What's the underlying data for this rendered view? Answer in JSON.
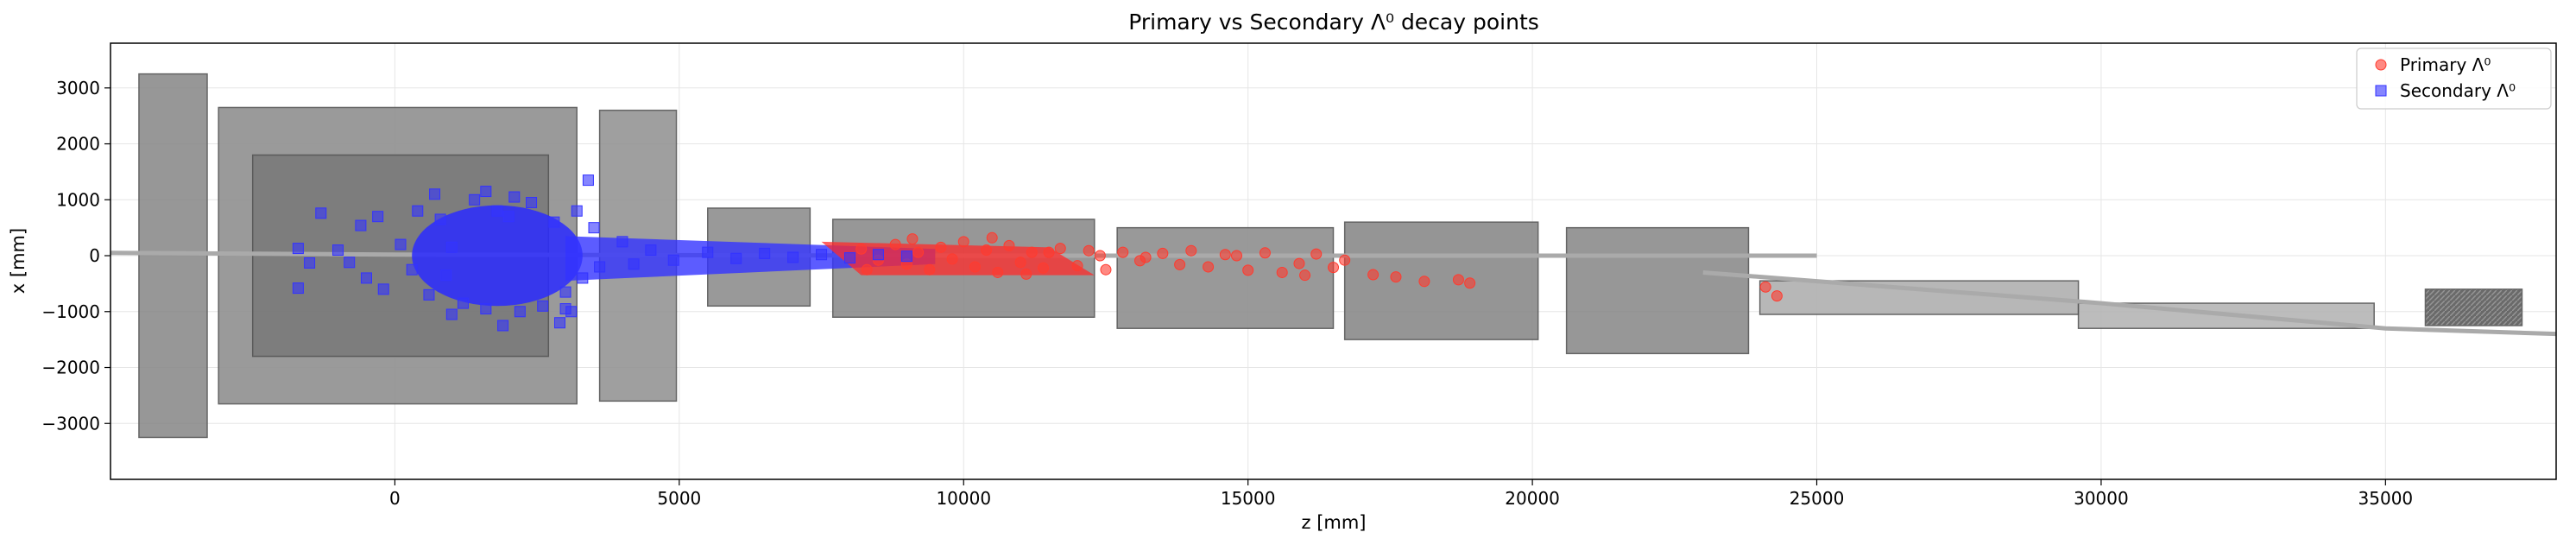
{
  "chart_data": {
    "type": "scatter",
    "title": "Primary vs Secondary Λ⁰ decay points",
    "xlabel": "z [mm]",
    "ylabel": "x [mm]",
    "xlim": [
      -5000,
      38000
    ],
    "ylim": [
      -4000,
      3800
    ],
    "xticks": [
      0,
      5000,
      10000,
      15000,
      20000,
      25000,
      30000,
      35000
    ],
    "yticks": [
      -3000,
      -2000,
      -1000,
      0,
      1000,
      2000,
      3000
    ],
    "grid": true,
    "legend": {
      "position": "upper right",
      "entries": [
        "Primary Λ⁰",
        "Secondary Λ⁰"
      ]
    },
    "colors": {
      "primary": "#ff3b2f",
      "secondary": "#3333ff",
      "detector": "#9a9a9a",
      "detector_dark": "#6e6e6e"
    },
    "series": [
      {
        "name": "Primary Λ⁰",
        "marker": "circle",
        "color": "#ff3b2f",
        "points": [
          [
            8200,
            120
          ],
          [
            8500,
            -80
          ],
          [
            8800,
            200
          ],
          [
            9000,
            -150
          ],
          [
            9200,
            60
          ],
          [
            9400,
            -250
          ],
          [
            9600,
            150
          ],
          [
            9800,
            -60
          ],
          [
            10000,
            250
          ],
          [
            10200,
            -200
          ],
          [
            10400,
            100
          ],
          [
            10600,
            -300
          ],
          [
            10800,
            180
          ],
          [
            11000,
            -120
          ],
          [
            11200,
            60
          ],
          [
            11400,
            -220
          ],
          [
            11700,
            130
          ],
          [
            12000,
            -180
          ],
          [
            12200,
            90
          ],
          [
            12500,
            -250
          ],
          [
            12800,
            60
          ],
          [
            13100,
            -90
          ],
          [
            13500,
            40
          ],
          [
            13800,
            -160
          ],
          [
            14000,
            90
          ],
          [
            14300,
            -200
          ],
          [
            14600,
            20
          ],
          [
            15000,
            -260
          ],
          [
            15300,
            50
          ],
          [
            15600,
            -300
          ],
          [
            15900,
            -140
          ],
          [
            16200,
            30
          ],
          [
            16500,
            -210
          ],
          [
            16700,
            -80
          ],
          [
            17200,
            -340
          ],
          [
            17600,
            -380
          ],
          [
            18100,
            -460
          ],
          [
            18700,
            -430
          ],
          [
            18900,
            -490
          ],
          [
            24100,
            -560
          ],
          [
            24300,
            -720
          ],
          [
            11500,
            60
          ],
          [
            12400,
            0
          ],
          [
            13200,
            -30
          ],
          [
            14800,
            0
          ],
          [
            16000,
            -350
          ],
          [
            8300,
            -250
          ],
          [
            9100,
            300
          ],
          [
            10500,
            320
          ],
          [
            11100,
            -330
          ]
        ]
      },
      {
        "name": "Secondary Λ⁰",
        "marker": "square",
        "color": "#3333ff",
        "points": [
          [
            -1700,
            130
          ],
          [
            -1500,
            -130
          ],
          [
            -1300,
            760
          ],
          [
            -1700,
            -580
          ],
          [
            -1000,
            100
          ],
          [
            -800,
            -120
          ],
          [
            -600,
            540
          ],
          [
            -500,
            -400
          ],
          [
            -300,
            700
          ],
          [
            -200,
            -600
          ],
          [
            100,
            200
          ],
          [
            300,
            -250
          ],
          [
            400,
            800
          ],
          [
            600,
            -700
          ],
          [
            700,
            1100
          ],
          [
            800,
            650
          ],
          [
            900,
            -350
          ],
          [
            1000,
            150
          ],
          [
            1200,
            -850
          ],
          [
            1400,
            1000
          ],
          [
            1600,
            -950
          ],
          [
            1800,
            800
          ],
          [
            2000,
            700
          ],
          [
            2200,
            -1000
          ],
          [
            2400,
            950
          ],
          [
            2600,
            -900
          ],
          [
            2800,
            600
          ],
          [
            3000,
            -650
          ],
          [
            3200,
            800
          ],
          [
            3300,
            -400
          ],
          [
            3400,
            1350
          ],
          [
            3500,
            500
          ],
          [
            3600,
            -200
          ],
          [
            4000,
            250
          ],
          [
            4200,
            -150
          ],
          [
            4500,
            100
          ],
          [
            4900,
            -80
          ],
          [
            5500,
            60
          ],
          [
            6000,
            -50
          ],
          [
            6500,
            40
          ],
          [
            7000,
            -30
          ],
          [
            7500,
            20
          ],
          [
            8000,
            -40
          ],
          [
            8500,
            20
          ],
          [
            9000,
            -10
          ],
          [
            3100,
            -1000
          ],
          [
            3000,
            -950
          ],
          [
            2900,
            -1200
          ],
          [
            1000,
            -1050
          ],
          [
            1600,
            1150
          ],
          [
            2100,
            1050
          ],
          [
            1900,
            -1250
          ]
        ]
      }
    ]
  }
}
